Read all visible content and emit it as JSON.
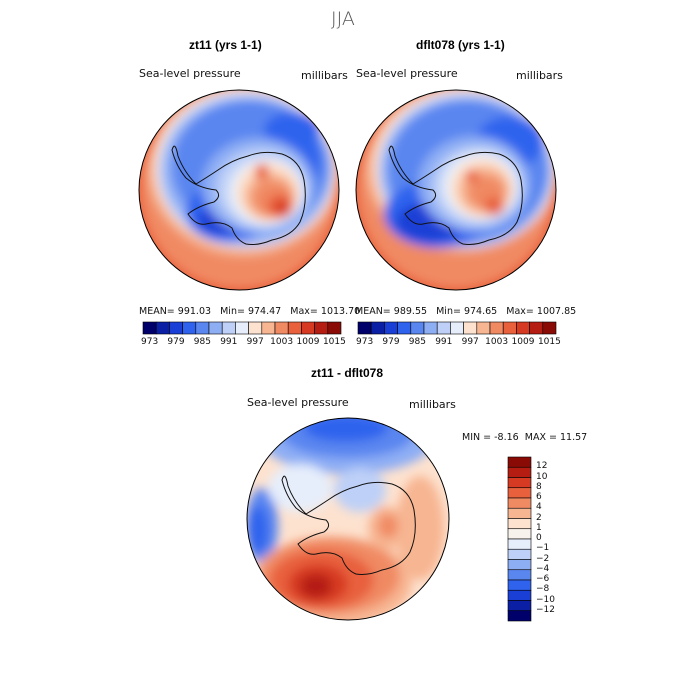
{
  "page_title": "JJA",
  "chart_data": [
    {
      "type": "heatmap",
      "panel": "left",
      "title": "zt11 (yrs 1-1)",
      "variable": "Sea-level pressure",
      "units": "millibars",
      "stats": {
        "mean": "991.03",
        "min": "974.47",
        "max": "1013.70"
      },
      "stats_labels": {
        "mean": "MEAN=",
        "min": "Min=",
        "max": "Max="
      },
      "colorbar": {
        "orientation": "horizontal",
        "levels": [
          973,
          976,
          979,
          982,
          985,
          988,
          991,
          994,
          997,
          1000,
          1003,
          1006,
          1009,
          1012,
          1015
        ],
        "tick_labels": [
          "973",
          "979",
          "985",
          "991",
          "997",
          "1003",
          "1009",
          "1015"
        ],
        "colors": [
          "#00006b",
          "#0a1fa3",
          "#1a3fd6",
          "#2f63ee",
          "#5a86f0",
          "#8eaef4",
          "#bed0f7",
          "#e6eefb",
          "#fde2cf",
          "#f7b592",
          "#f08a63",
          "#e8603c",
          "#d73a22",
          "#b51d12",
          "#8a0b06"
        ]
      },
      "map": {
        "projection": "south-polar-stereographic",
        "region": "Antarctica",
        "pattern": "high pressure over East Antarctic plateau, low pressure ring around continent, high in subtropics"
      }
    },
    {
      "type": "heatmap",
      "panel": "right",
      "title": "dflt078 (yrs 1-1)",
      "variable": "Sea-level pressure",
      "units": "millibars",
      "stats": {
        "mean": "989.55",
        "min": "974.65",
        "max": "1007.85"
      },
      "stats_labels": {
        "mean": "MEAN=",
        "min": "Min=",
        "max": "Max="
      },
      "colorbar": {
        "orientation": "horizontal",
        "levels": [
          973,
          976,
          979,
          982,
          985,
          988,
          991,
          994,
          997,
          1000,
          1003,
          1006,
          1009,
          1012,
          1015
        ],
        "tick_labels": [
          "973",
          "979",
          "985",
          "991",
          "997",
          "1003",
          "1009",
          "1015"
        ],
        "colors": [
          "#00006b",
          "#0a1fa3",
          "#1a3fd6",
          "#2f63ee",
          "#5a86f0",
          "#8eaef4",
          "#bed0f7",
          "#e6eefb",
          "#fde2cf",
          "#f7b592",
          "#f08a63",
          "#e8603c",
          "#d73a22",
          "#b51d12",
          "#8a0b06"
        ]
      },
      "map": {
        "projection": "south-polar-stereographic",
        "region": "Antarctica",
        "pattern": "high pressure over East Antarctic plateau, deep low near Ross Sea, high in subtropics"
      }
    },
    {
      "type": "heatmap",
      "panel": "difference",
      "title": "zt11 - dflt078",
      "variable": "Sea-level pressure",
      "units": "millibars",
      "stats": {
        "min": "-8.16",
        "max": "11.57"
      },
      "stats_labels": {
        "min": "MIN =",
        "max": "MAX ="
      },
      "colorbar": {
        "orientation": "vertical",
        "levels": [
          12,
          10,
          8,
          6,
          4,
          2,
          1,
          0,
          -1,
          -2,
          -4,
          -6,
          -8,
          -10,
          -12
        ],
        "tick_labels": [
          "12",
          "10",
          "8",
          "6",
          "4",
          "2",
          "1",
          "0",
          "−1",
          "−2",
          "−4",
          "−6",
          "−8",
          "−10",
          "−12"
        ],
        "colors": [
          "#8a0b06",
          "#b51d12",
          "#d73a22",
          "#e8603c",
          "#f08a63",
          "#f7b592",
          "#fde2cf",
          "#f8f2ec",
          "#e6eefb",
          "#bed0f7",
          "#8eaef4",
          "#5a86f0",
          "#2f63ee",
          "#1a3fd6",
          "#0a1fa3",
          "#00006b"
        ]
      },
      "map": {
        "projection": "south-polar-stereographic",
        "region": "Antarctica",
        "pattern": "strong positive anomaly near Ross Sea / Pacific sector, negative anomaly north of Antarctic Peninsula sector"
      }
    }
  ]
}
